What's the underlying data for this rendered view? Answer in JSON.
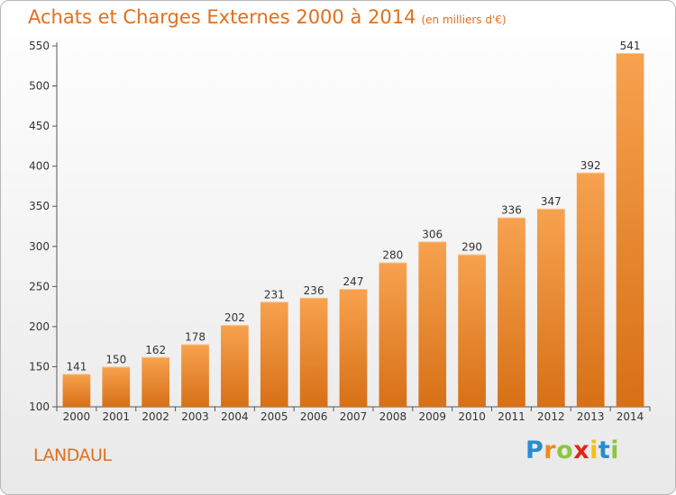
{
  "chart_data": {
    "type": "bar",
    "title": "Achats et Charges Externes 2000 à 2014",
    "subtitle": "(en milliers d'€)",
    "xlabel": "",
    "ylabel": "",
    "categories": [
      "2000",
      "2001",
      "2002",
      "2003",
      "2004",
      "2005",
      "2006",
      "2007",
      "2008",
      "2009",
      "2010",
      "2011",
      "2012",
      "2013",
      "2014"
    ],
    "values": [
      141,
      150,
      162,
      178,
      202,
      231,
      236,
      247,
      280,
      306,
      290,
      336,
      347,
      392,
      541
    ],
    "ylim": [
      100,
      550
    ],
    "yticks": [
      100,
      150,
      200,
      250,
      300,
      350,
      400,
      450,
      500,
      550
    ],
    "grid": false,
    "legend": "none",
    "bar_color_top": "#f7a24f",
    "bar_color_bottom": "#d77016",
    "data_labels": true
  },
  "place_name": "LANDAUL",
  "logo": {
    "letters": [
      "P",
      "r",
      "o",
      "x",
      "i",
      "t",
      "i"
    ],
    "colors": [
      "#2a8bd0",
      "#f08a1c",
      "#8cc63f",
      "#e2231a",
      "#f4c20d",
      "#2a8bd0",
      "#8cc63f"
    ]
  }
}
